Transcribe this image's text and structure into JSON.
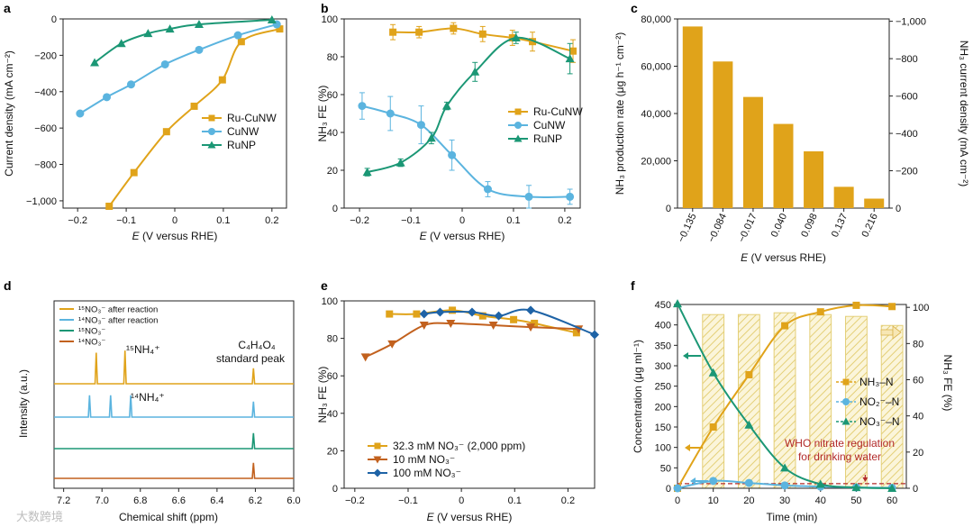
{
  "colors": {
    "ru": "#E0A31A",
    "cu": "#5BB4DF",
    "rn": "#1B9775",
    "c10": "#C2611E",
    "c100": "#1E63A6",
    "bar": "#E0A31A",
    "hatch": "#E4CF77",
    "who": "#B22A2A",
    "nmr_ru15": "#E0A31A",
    "nmr_ru14": "#5BB4DF",
    "nmr_15": "#1B9775",
    "nmr_14": "#C2611E"
  },
  "watermark": "大数跨境",
  "chart_data": [
    {
      "panel": "a",
      "type": "line",
      "xlabel": "E (V versus RHE)",
      "ylabel": "Current density (mA cm⁻²)",
      "xlim": [
        -0.23,
        0.23
      ],
      "ylim": [
        -1040,
        0
      ],
      "xticks": [
        -0.2,
        -0.1,
        0,
        0.1,
        0.2
      ],
      "xticklabels": [
        "−0.2",
        "−0.1",
        "0",
        "0.1",
        "0.2"
      ],
      "yticks": [
        0,
        -200,
        -400,
        -600,
        -800,
        -1000
      ],
      "yticklabels": [
        "0",
        "−200",
        "−400",
        "−600",
        "−800",
        "−1,000"
      ],
      "legend": "bottom-right",
      "series": [
        {
          "name": "Ru-CuNW",
          "color_key": "ru",
          "marker": "square",
          "x": [
            -0.135,
            -0.084,
            -0.017,
            0.04,
            0.098,
            0.137,
            0.216
          ],
          "y": [
            -1030,
            -845,
            -620,
            -480,
            -335,
            -125,
            -55
          ]
        },
        {
          "name": "CuNW",
          "color_key": "cu",
          "marker": "circle",
          "x": [
            -0.195,
            -0.14,
            -0.09,
            -0.02,
            0.05,
            0.13,
            0.21
          ],
          "y": [
            -520,
            -430,
            -360,
            -250,
            -170,
            -90,
            -30
          ]
        },
        {
          "name": "RuNP",
          "color_key": "rn",
          "marker": "triangle",
          "x": [
            -0.165,
            -0.11,
            -0.055,
            -0.01,
            0.05,
            0.2
          ],
          "y": [
            -240,
            -135,
            -80,
            -55,
            -30,
            -5
          ]
        }
      ]
    },
    {
      "panel": "b",
      "type": "line",
      "xlabel": "E (V versus RHE)",
      "ylabel": "NH₃ FE (%)",
      "xlim": [
        -0.23,
        0.23
      ],
      "ylim": [
        0,
        100
      ],
      "xticks": [
        -0.2,
        -0.1,
        0,
        0.1,
        0.2
      ],
      "xticklabels": [
        "−0.2",
        "−0.1",
        "0",
        "0.1",
        "0.2"
      ],
      "yticks": [
        0,
        20,
        40,
        60,
        80,
        100
      ],
      "yticklabels": [
        "0",
        "20",
        "40",
        "60",
        "80",
        "100"
      ],
      "legend": "center-right",
      "series": [
        {
          "name": "Ru-CuNW",
          "color_key": "ru",
          "marker": "square",
          "x": [
            -0.135,
            -0.084,
            -0.017,
            0.04,
            0.098,
            0.137,
            0.216
          ],
          "y": [
            93,
            93,
            95,
            92,
            90,
            88,
            83
          ],
          "err": [
            4,
            3,
            3,
            4,
            4,
            5,
            6
          ]
        },
        {
          "name": "CuNW",
          "color_key": "cu",
          "marker": "circle",
          "x": [
            -0.195,
            -0.14,
            -0.08,
            -0.02,
            0.05,
            0.13,
            0.21
          ],
          "y": [
            54,
            50,
            44,
            28,
            10,
            6,
            6
          ],
          "err": [
            7,
            9,
            10,
            8,
            4,
            6,
            4
          ]
        },
        {
          "name": "RuNP",
          "color_key": "rn",
          "marker": "triangle",
          "x": [
            -0.185,
            -0.12,
            -0.06,
            -0.03,
            0.025,
            0.105,
            0.21
          ],
          "y": [
            19,
            24,
            37,
            54,
            72,
            90,
            79
          ],
          "err": [
            2,
            2,
            3,
            2,
            5,
            3,
            8
          ]
        }
      ]
    },
    {
      "panel": "c",
      "type": "bar",
      "xlabel": "E (V versus RHE)",
      "ylabel": "NH₃ production rate (μg h⁻¹ cm⁻²)",
      "ylabel_right": "NH₃ current density (mA cm⁻²)",
      "categories": [
        "−0.135",
        "−0.084",
        "−0.017",
        "0.040",
        "0.098",
        "0.137",
        "0.216"
      ],
      "values": [
        76800,
        62000,
        47000,
        35600,
        24000,
        9000,
        4000
      ],
      "ylim": [
        0,
        80000
      ],
      "yticks": [
        0,
        20000,
        40000,
        60000,
        80000
      ],
      "yticklabels": [
        "0",
        "20,000",
        "40,000",
        "60,000",
        "80,000"
      ],
      "yticks_right": [
        0,
        -200,
        -400,
        -600,
        -800,
        -1000
      ],
      "yticklabels_right": [
        "0",
        "−200",
        "−400",
        "−600",
        "−800",
        "−1,000"
      ]
    },
    {
      "panel": "d",
      "type": "line",
      "xlabel": "Chemical shift (ppm)",
      "ylabel": "Intensity (a.u.)",
      "xlim": [
        7.25,
        6.0
      ],
      "xticks": [
        7.2,
        7.0,
        6.8,
        6.6,
        6.4,
        6.2,
        6.0
      ],
      "xticklabels": [
        "7.2",
        "7.0",
        "6.8",
        "6.6",
        "6.4",
        "6.2",
        "6.0"
      ],
      "legend": "top-left",
      "traces": [
        {
          "name": "¹⁵NO₃⁻ after reaction",
          "color_key": "nmr_ru15",
          "baseline": 4,
          "peaks": [
            7.03,
            6.88,
            6.21
          ],
          "heights": [
            3.0,
            3.2,
            1.5
          ]
        },
        {
          "name": "¹⁴NO₃⁻ after reaction",
          "color_key": "nmr_ru14",
          "baseline": 3,
          "peaks": [
            7.065,
            6.955,
            6.85,
            6.21
          ],
          "heights": [
            2.1,
            2.1,
            2.1,
            1.5
          ]
        },
        {
          "name": "¹⁵NO₃⁻",
          "color_key": "nmr_15",
          "baseline": 2,
          "peaks": [
            6.21
          ],
          "heights": [
            1.5
          ]
        },
        {
          "name": "¹⁴NO₃⁻",
          "color_key": "nmr_14",
          "baseline": 1,
          "peaks": [
            6.21
          ],
          "heights": [
            1.5
          ]
        }
      ],
      "annotations": [
        "¹⁵NH₄⁺",
        "¹⁴NH₄⁺",
        "C₄H₄O₄",
        "standard peak"
      ]
    },
    {
      "panel": "e",
      "type": "line",
      "xlabel": "E (V versus RHE)",
      "ylabel": "NH₃ FE (%)",
      "xlim": [
        -0.22,
        0.25
      ],
      "ylim": [
        0,
        100
      ],
      "xticks": [
        -0.2,
        -0.1,
        0,
        0.1,
        0.2
      ],
      "xticklabels": [
        "−0.2",
        "−0.1",
        "0",
        "0.1",
        "0.2"
      ],
      "yticks": [
        0,
        20,
        40,
        60,
        80,
        100
      ],
      "yticklabels": [
        "0",
        "20",
        "40",
        "60",
        "80",
        "100"
      ],
      "legend": "bottom-left",
      "series": [
        {
          "name": "32.3 mM NO₃⁻ (2,000 ppm)",
          "color_key": "ru",
          "marker": "square",
          "x": [
            -0.135,
            -0.084,
            -0.017,
            0.04,
            0.098,
            0.137,
            0.216
          ],
          "y": [
            93,
            93,
            95,
            92,
            90,
            88,
            83
          ]
        },
        {
          "name": "10 mM NO₃⁻",
          "color_key": "c10",
          "marker": "triangle-down",
          "x": [
            -0.18,
            -0.13,
            -0.07,
            -0.02,
            0.06,
            0.13,
            0.22
          ],
          "y": [
            70,
            77,
            87,
            88,
            87,
            86,
            85
          ]
        },
        {
          "name": "100 mM NO₃⁻",
          "color_key": "c100",
          "marker": "diamond",
          "x": [
            -0.07,
            -0.04,
            0.02,
            0.07,
            0.13,
            0.25
          ],
          "y": [
            93,
            94,
            94,
            92,
            95,
            82
          ]
        }
      ]
    },
    {
      "panel": "f",
      "type": "line",
      "xlabel": "Time (min)",
      "ylabel": "Concentration (μg ml⁻¹)",
      "ylabel_right": "NH₃ FE (%)",
      "xlim": [
        0,
        64
      ],
      "ylim": [
        0,
        450
      ],
      "ylim_right": [
        0,
        100
      ],
      "xticks": [
        0,
        10,
        20,
        30,
        40,
        50,
        60
      ],
      "xticklabels": [
        "0",
        "10",
        "20",
        "30",
        "40",
        "50",
        "60"
      ],
      "yticks": [
        0,
        50,
        100,
        150,
        200,
        250,
        300,
        350,
        400,
        450
      ],
      "yticklabels": [
        "0",
        "50",
        "100",
        "150",
        "200",
        "250",
        "300",
        "350",
        "400",
        "450"
      ],
      "yticks_right": [
        0,
        20,
        40,
        60,
        80,
        100
      ],
      "yticklabels_right": [
        "0",
        "20",
        "40",
        "60",
        "80",
        "100"
      ],
      "legend": "center-right",
      "bars_fe": {
        "t_start": [
          7,
          17,
          27,
          37,
          47,
          57
        ],
        "t_end": [
          13,
          23,
          33,
          43,
          53,
          63
        ],
        "values": [
          96,
          96,
          97,
          96,
          95,
          90
        ]
      },
      "series": [
        {
          "name": "NH₃–N",
          "color_key": "ru",
          "marker": "square",
          "x": [
            0,
            10,
            20,
            30,
            40,
            50,
            60
          ],
          "y": [
            0,
            150,
            278,
            398,
            432,
            448,
            445
          ]
        },
        {
          "name": "NO₂⁻–N",
          "color_key": "cu",
          "marker": "circle",
          "x": [
            0,
            10,
            20,
            30,
            40,
            50,
            60
          ],
          "y": [
            0,
            18,
            13,
            7,
            4,
            2,
            1
          ]
        },
        {
          "name": "NO₃⁻–N",
          "color_key": "rn",
          "marker": "triangle",
          "x": [
            0,
            10,
            20,
            30,
            40,
            50,
            60
          ],
          "y": [
            452,
            283,
            155,
            50,
            10,
            2,
            0
          ]
        }
      ],
      "who_limit": 11.3,
      "annotation": [
        "WHO nitrate regulation",
        "for drinking water"
      ]
    }
  ]
}
